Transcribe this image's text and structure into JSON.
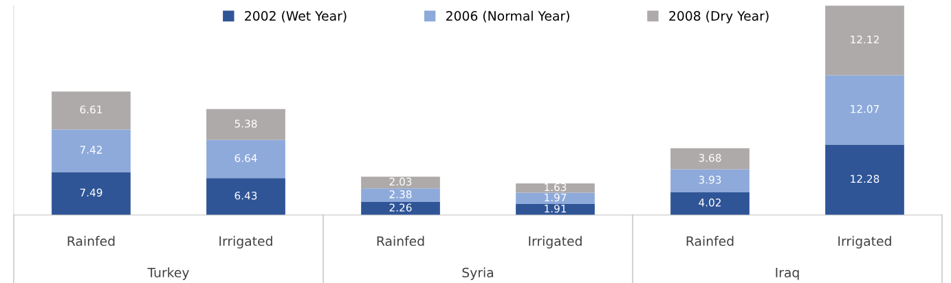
{
  "chart_data": {
    "type": "bar",
    "stacked": true,
    "categories": [
      "Rainfed",
      "Irrigated",
      "Rainfed",
      "Irrigated",
      "Rainfed",
      "Irrigated"
    ],
    "series": [
      {
        "name": "2002 (Wet Year)",
        "color": "#2f5597",
        "values": [
          7.49,
          6.43,
          2.26,
          1.91,
          4.02,
          12.28
        ]
      },
      {
        "name": "2006 (Normal Year)",
        "color": "#8eaadb",
        "values": [
          7.42,
          6.64,
          2.38,
          1.97,
          3.93,
          12.07
        ]
      },
      {
        "name": "2008 (Dry Year)",
        "color": "#aeaaaa",
        "values": [
          6.61,
          5.38,
          2.03,
          1.63,
          3.68,
          12.12
        ]
      }
    ],
    "annotations": [
      "Turkey",
      "Syria",
      "Iraq"
    ],
    "ylim": [
      0,
      36.5
    ],
    "data_labels": true,
    "legend": "top",
    "grid": false,
    "tick_labels": "x"
  }
}
